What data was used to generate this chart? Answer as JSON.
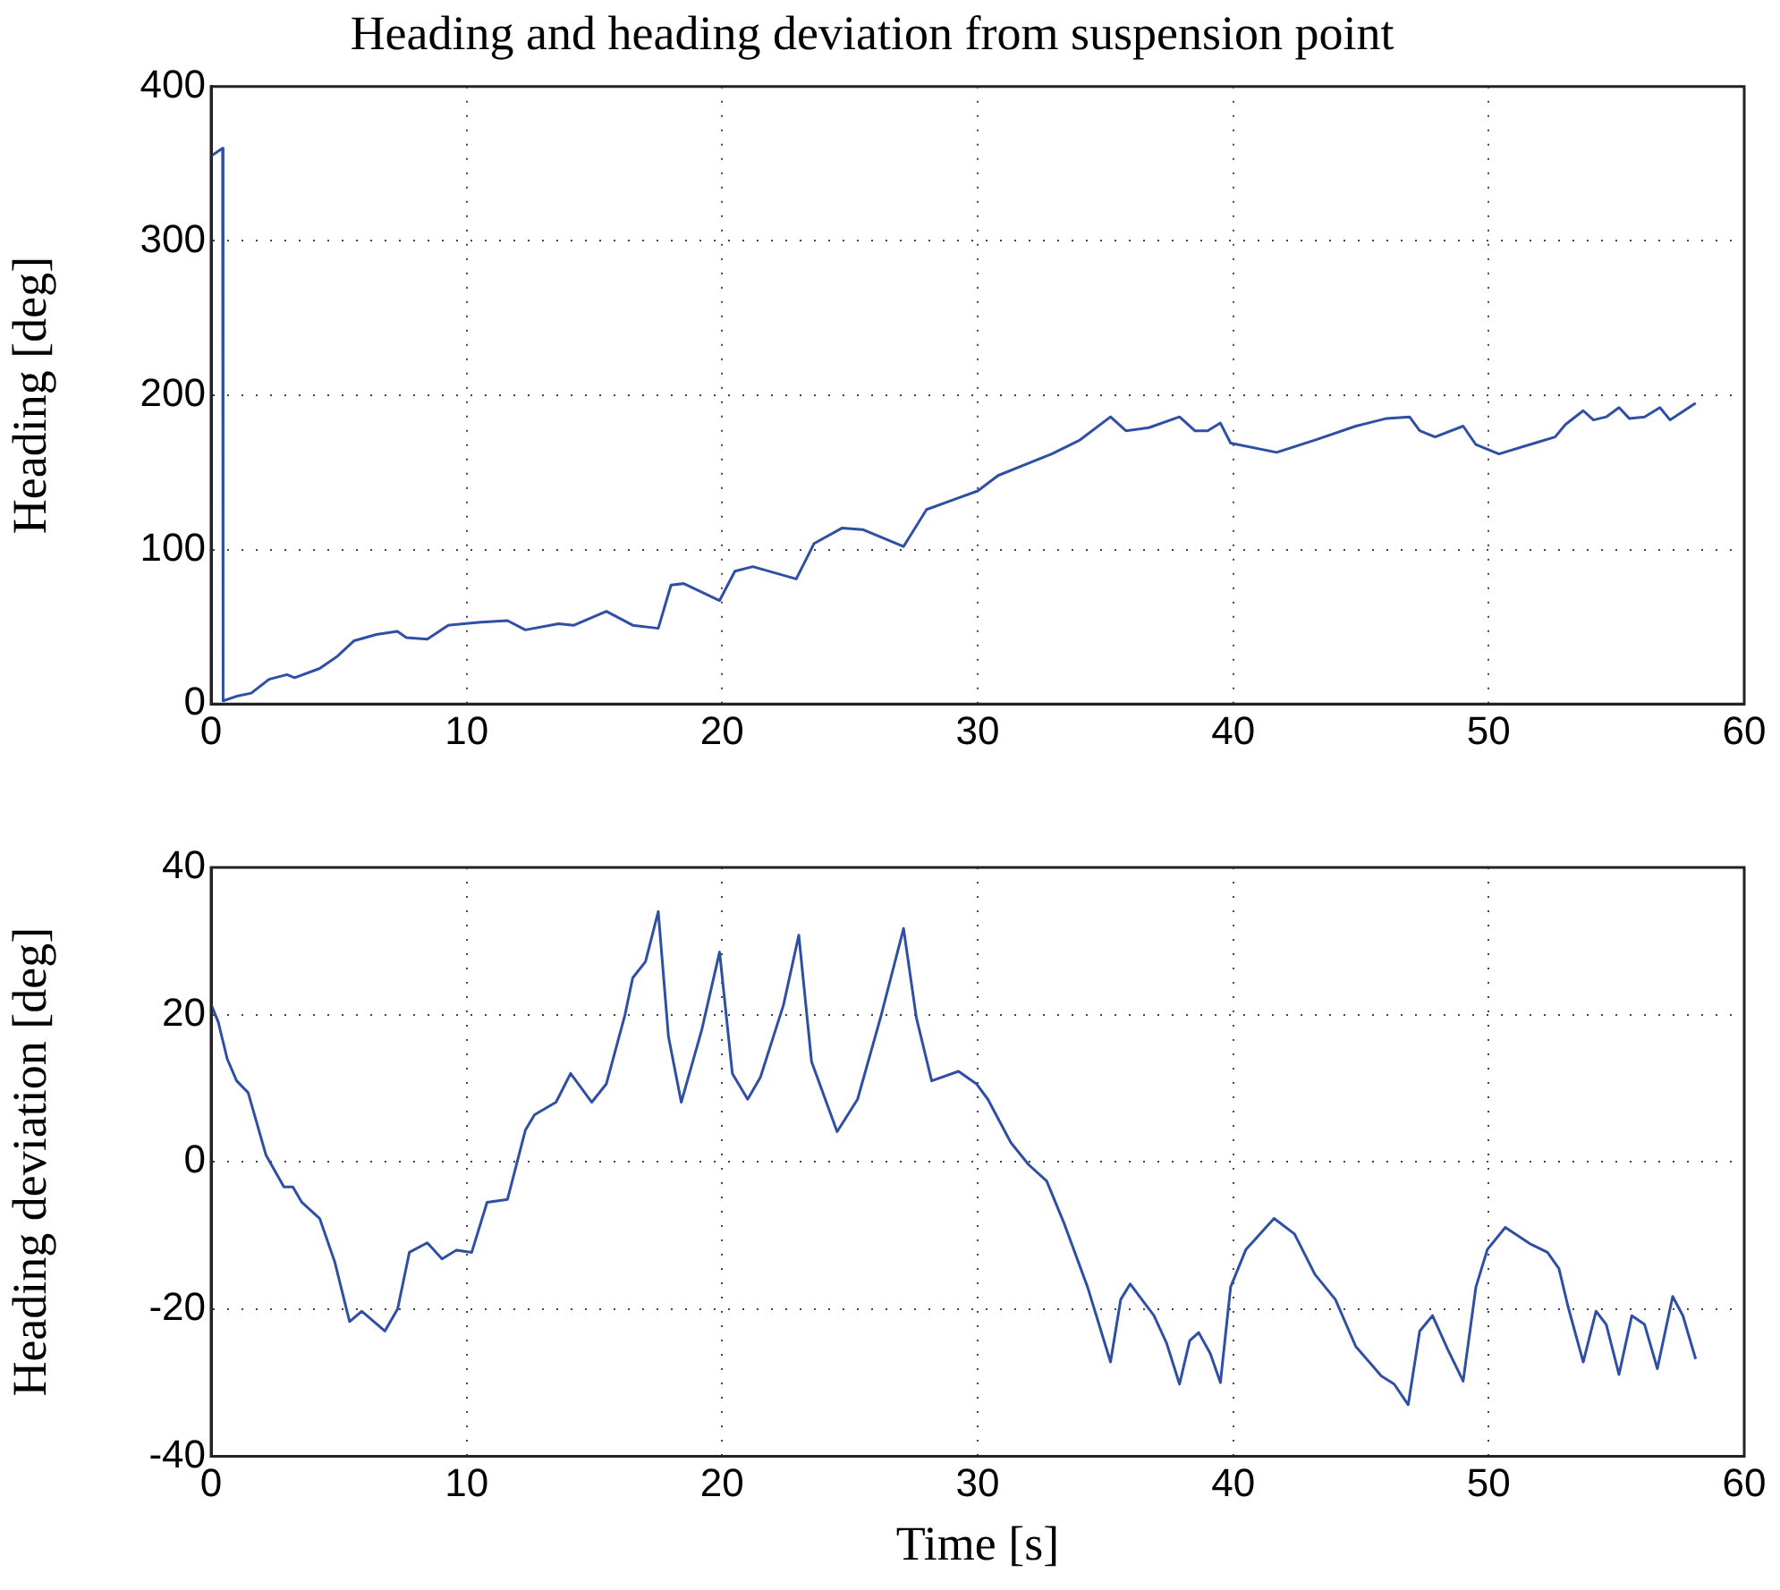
{
  "chart_data": [
    {
      "type": "line",
      "title": "Heading and heading deviation from suspension point",
      "ylabel": "Heading [deg]",
      "xlim": [
        0,
        60
      ],
      "xticks": [
        0,
        10,
        20,
        30,
        40,
        50,
        60
      ],
      "ylim": [
        0,
        400
      ],
      "yticks": [
        0,
        100,
        200,
        300,
        400
      ],
      "grid": true,
      "series": [
        {
          "color": "#2e4fa3",
          "x": [
            0,
            0.45,
            0.47,
            1.0,
            1.57,
            2.27,
            2.97,
            3.27,
            4.25,
            4.95,
            5.6,
            6.47,
            7.29,
            7.64,
            8.46,
            9.28,
            10.56,
            11.6,
            12.3,
            13.6,
            14.2,
            15.47,
            16.5,
            17.5,
            18.0,
            18.5,
            19.9,
            20.5,
            21.2,
            22.9,
            23.6,
            24.7,
            25.5,
            27.1,
            28.0,
            29.0,
            30.0,
            30.8,
            32.0,
            32.9,
            34.0,
            35.2,
            35.8,
            36.7,
            37.9,
            38.5,
            39.0,
            39.5,
            39.9,
            41.7,
            43.2,
            44.8,
            46.0,
            46.9,
            47.3,
            47.9,
            49.0,
            49.5,
            50.4,
            51.8,
            52.6,
            53.0,
            53.7,
            54.1,
            54.6,
            55.1,
            55.5,
            56.1,
            56.7,
            57.1,
            58.1
          ],
          "values": [
            355,
            360,
            2,
            5,
            7,
            16,
            19,
            17,
            23,
            31,
            41,
            45,
            47,
            43,
            42,
            51,
            53,
            54,
            48,
            52,
            51,
            60,
            51,
            49,
            77,
            78,
            67,
            86,
            89,
            81,
            104,
            114,
            113,
            102,
            126,
            132,
            138,
            148,
            156,
            162,
            171,
            186,
            177,
            179,
            186,
            177,
            177,
            182,
            169,
            163,
            171,
            180,
            185,
            186,
            177,
            173,
            180,
            168,
            162,
            169,
            173,
            181,
            190,
            184,
            186,
            192,
            185,
            186,
            192,
            184,
            195
          ]
        }
      ]
    },
    {
      "type": "line",
      "xlabel": "Time [s]",
      "ylabel": "Heading deviation [deg]",
      "xlim": [
        0,
        60
      ],
      "xticks": [
        0,
        10,
        20,
        30,
        40,
        50,
        60
      ],
      "ylim": [
        -40,
        40
      ],
      "yticks": [
        -40,
        -20,
        0,
        20,
        40
      ],
      "grid": true,
      "series": [
        {
          "color": "#2e4fa3",
          "x": [
            0,
            0.28,
            0.63,
            1.0,
            1.45,
            2.15,
            2.85,
            3.2,
            3.55,
            4.25,
            4.84,
            5.42,
            5.9,
            6.8,
            7.3,
            7.76,
            8.46,
            9.04,
            9.6,
            10.2,
            10.8,
            11.6,
            12.3,
            12.66,
            13.5,
            14.07,
            14.9,
            15.47,
            16.2,
            16.5,
            17.0,
            17.5,
            17.9,
            18.4,
            19.2,
            19.9,
            20.4,
            21.0,
            21.5,
            22.4,
            23.0,
            23.5,
            24.5,
            25.3,
            26.2,
            27.1,
            27.6,
            28.2,
            29.25,
            29.95,
            30.4,
            31.3,
            32.0,
            32.7,
            33.4,
            34.3,
            35.2,
            35.6,
            35.97,
            36.9,
            37.4,
            37.9,
            38.3,
            38.65,
            39.1,
            39.5,
            39.9,
            40.5,
            41.6,
            42.4,
            43.2,
            44.0,
            44.8,
            45.8,
            46.3,
            46.85,
            47.3,
            47.8,
            48.4,
            49.0,
            49.5,
            49.95,
            50.65,
            51.6,
            52.3,
            52.75,
            53.1,
            53.7,
            54.2,
            54.6,
            55.1,
            55.6,
            56.1,
            56.6,
            57.2,
            57.6,
            58.1
          ],
          "values": [
            21.4,
            19,
            14,
            11,
            9.4,
            0.9,
            -3.4,
            -3.4,
            -5.5,
            -7.7,
            -13.6,
            -21.7,
            -20.3,
            -23,
            -20,
            -12.3,
            -11,
            -13.2,
            -12,
            -12.3,
            -5.5,
            -5.1,
            4.3,
            6.4,
            8.1,
            12,
            8.1,
            10.6,
            20,
            25,
            27.2,
            34,
            17,
            8.1,
            17.9,
            28.5,
            12,
            8.5,
            11.5,
            21.3,
            30.8,
            13.6,
            4.1,
            8.5,
            19.6,
            31.7,
            19.6,
            11,
            12.3,
            10.6,
            8.5,
            2.6,
            -0.4,
            -2.6,
            -8.5,
            -17,
            -27.2,
            -18.7,
            -16.6,
            -20.9,
            -24.7,
            -30.2,
            -24.3,
            -23.2,
            -26,
            -30,
            -17,
            -11.9,
            -7.7,
            -9.8,
            -15.3,
            -18.7,
            -25.1,
            -29.1,
            -30.2,
            -33,
            -23,
            -20.9,
            -25.5,
            -29.8,
            -17,
            -11.9,
            -8.9,
            -11.1,
            -12.3,
            -14.5,
            -19.6,
            -27.2,
            -20.3,
            -22.1,
            -28.9,
            -20.9,
            -22.1,
            -28.1,
            -18.3,
            -20.9,
            -26.8
          ]
        }
      ]
    }
  ]
}
